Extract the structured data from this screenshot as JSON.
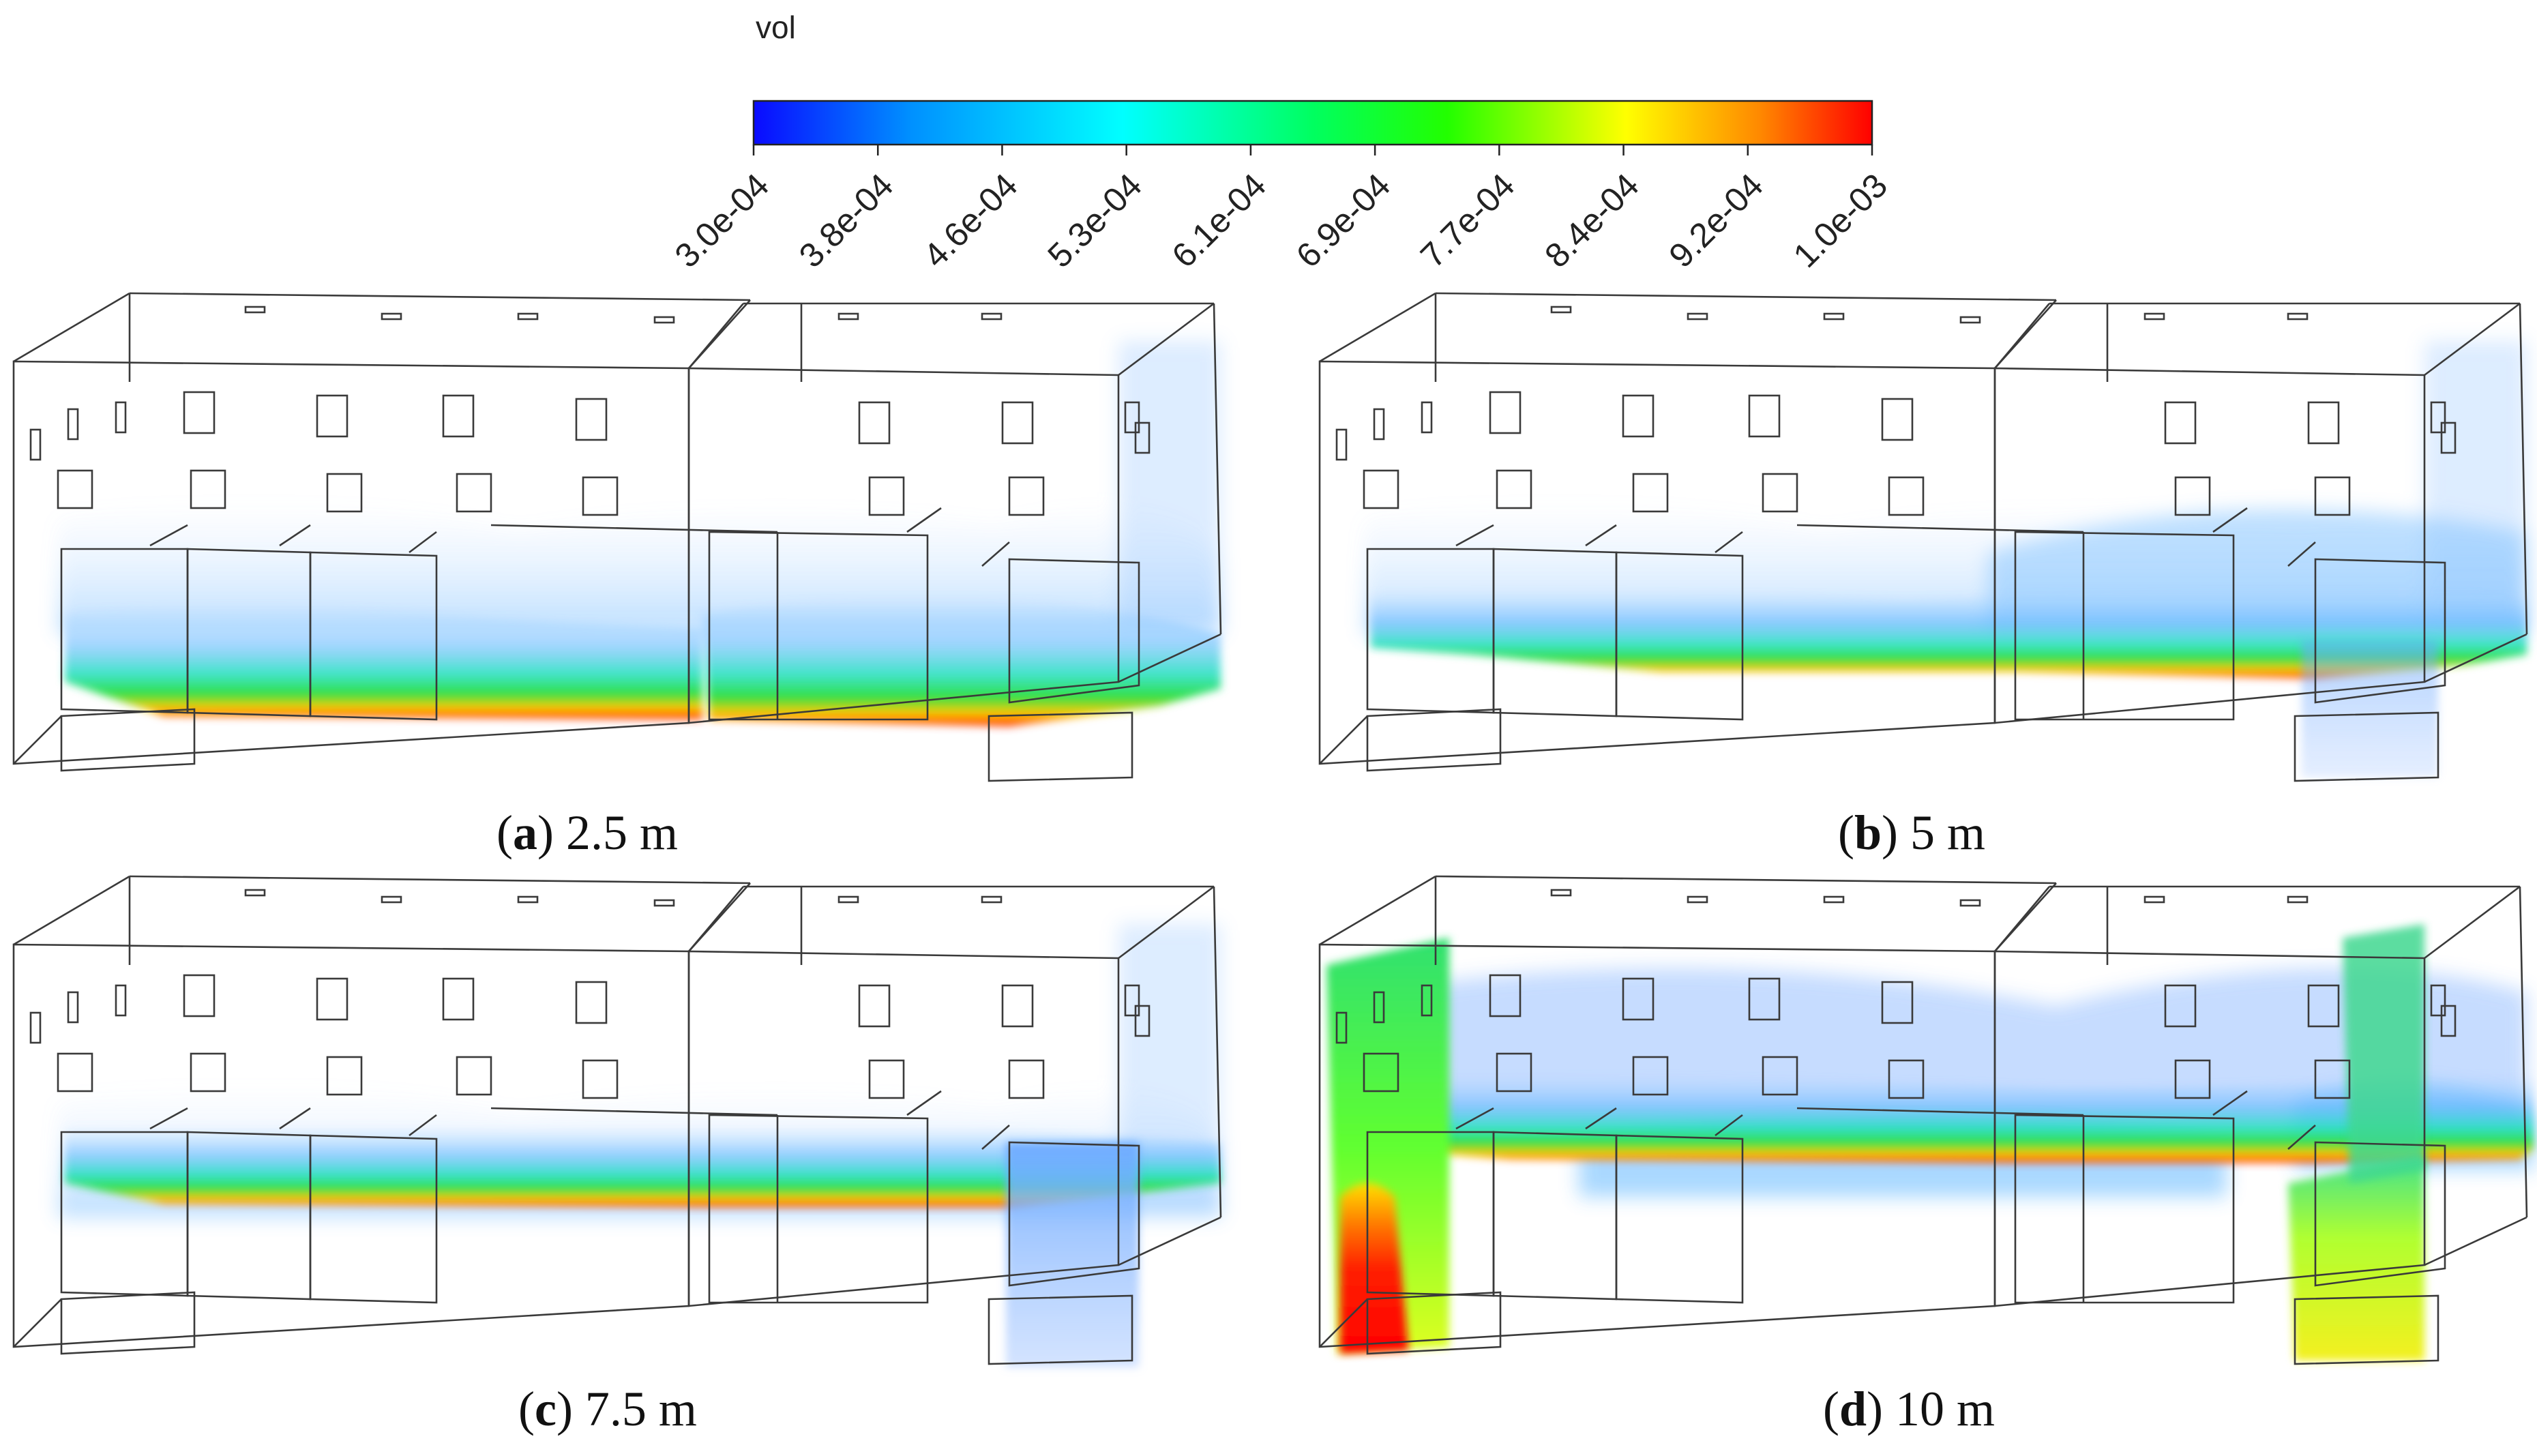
{
  "colorbar": {
    "title": "vol",
    "tick_labels": [
      "3.0e-04",
      "3.8e-04",
      "4.6e-04",
      "5.3e-04",
      "6.1e-04",
      "6.9e-04",
      "7.7e-04",
      "8.4e-04",
      "9.2e-04",
      "1.0e-03"
    ],
    "colors": [
      "#0000ff",
      "#0090ff",
      "#00ffff",
      "#00ff80",
      "#00ff00",
      "#ffff00",
      "#ff8000",
      "#ff0000"
    ]
  },
  "panels": [
    {
      "letter": "a",
      "suffix": ") 2.5 m",
      "open": "("
    },
    {
      "letter": "b",
      "suffix": ") 5 m",
      "open": "("
    },
    {
      "letter": "c",
      "suffix": ") 7.5 m",
      "open": "("
    },
    {
      "letter": "d",
      "suffix": ") 10 m",
      "open": "("
    }
  ]
}
